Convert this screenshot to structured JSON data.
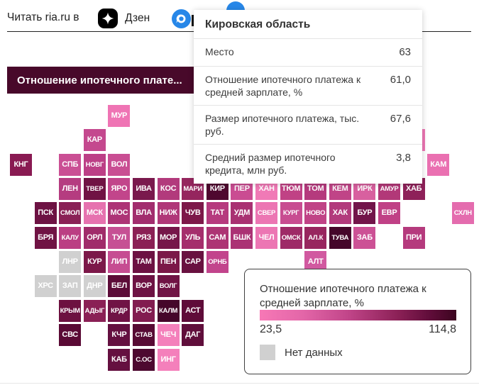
{
  "header": {
    "read_text": "Читать ria.ru в",
    "zen_label": "Дзен"
  },
  "title_bar": {
    "text": "Отношение ипотечного плате..."
  },
  "tooltip": {
    "title": "Кировская область",
    "rows": [
      {
        "label": "Место",
        "value": "63"
      },
      {
        "label": "Отношение ипотечного платежа к средней зарплате, %",
        "value": "61,0"
      },
      {
        "label": "Размер ипотечного платежа, тыс. руб.",
        "value": "67,6"
      },
      {
        "label": "Средний размер ипотечного кредита, млн руб.",
        "value": "3,8"
      }
    ]
  },
  "legend": {
    "title": "Отношение ипотечного платежа к средней зарплате, %",
    "min": "23,5",
    "max": "114,8",
    "no_data_label": "Нет данных",
    "no_data_color": "#d0d0d0",
    "gradient": [
      "#f778b6 0%",
      "#e366a8 22%",
      "#c14589 45%",
      "#8c2157 70%",
      "#5f0c39 87%",
      "#3c051f 100%"
    ]
  },
  "chart_data": {
    "type": "heatmap",
    "title": "Отношение ипотечного плате...",
    "colorbar": {
      "label": "Отношение ипотечного платежа к средней зарплате, %",
      "min": 23.5,
      "max": 114.8,
      "no_data": "Нет данных"
    },
    "selected_region": {
      "name": "Кировская область",
      "rank": 63,
      "payment_to_salary_pct": 61.0,
      "payment_thousand_rub": 67.6,
      "avg_credit_mln_rub": 3.8
    },
    "regions": [
      {
        "label": "МУР",
        "row": 0,
        "col": 4,
        "color": "#ef74b4"
      },
      {
        "label": "КАР",
        "row": 1,
        "col": 3,
        "color": "#c4488e"
      },
      {
        "label": "",
        "row": 1,
        "col": 16,
        "color": "#ee77b5"
      },
      {
        "label": "КНГ",
        "row": 2,
        "col": 0,
        "color": "#891a52"
      },
      {
        "label": "СПБ",
        "row": 2,
        "col": 2,
        "color": "#ca4f94"
      },
      {
        "label": "НОВГ",
        "row": 2,
        "col": 3,
        "color": "#bc3f86"
      },
      {
        "label": "ВОЛ",
        "row": 2,
        "col": 4,
        "color": "#c94e93"
      },
      {
        "label": "КАМ",
        "row": 2,
        "col": 17,
        "color": "#ea70b1"
      },
      {
        "label": "ЛЕН",
        "row": 3,
        "col": 2,
        "color": "#b53c80"
      },
      {
        "label": "ТВЕР",
        "row": 3,
        "col": 3,
        "color": "#701344"
      },
      {
        "label": "ЯРО",
        "row": 3,
        "col": 4,
        "color": "#c2458b"
      },
      {
        "label": "ИВА",
        "row": 3,
        "col": 5,
        "color": "#7a194d"
      },
      {
        "label": "КОС",
        "row": 3,
        "col": 6,
        "color": "#b23a7c"
      },
      {
        "label": "МАРИ",
        "row": 3,
        "col": 7,
        "color": "#95255e"
      },
      {
        "label": "КИР",
        "row": 3,
        "col": 8,
        "color": "#4f082f",
        "highlight": true
      },
      {
        "label": "ПЕР",
        "row": 3,
        "col": 9,
        "color": "#ca4c92"
      },
      {
        "label": "ХАН",
        "row": 3,
        "col": 10,
        "color": "#f07ab6"
      },
      {
        "label": "ТЮМ",
        "row": 3,
        "col": 11,
        "color": "#c04285"
      },
      {
        "label": "ТОМ",
        "row": 3,
        "col": 12,
        "color": "#b53a7d"
      },
      {
        "label": "КЕМ",
        "row": 3,
        "col": 13,
        "color": "#c04487"
      },
      {
        "label": "ИРК",
        "row": 3,
        "col": 14,
        "color": "#d8609f"
      },
      {
        "label": "АМУР",
        "row": 3,
        "col": 15,
        "color": "#b23878"
      },
      {
        "label": "ХАБ",
        "row": 3,
        "col": 16,
        "color": "#8e2159"
      },
      {
        "label": "ПСК",
        "row": 4,
        "col": 1,
        "color": "#6d1243"
      },
      {
        "label": "СМОЛ",
        "row": 4,
        "col": 2,
        "color": "#8a2156"
      },
      {
        "label": "МСК",
        "row": 4,
        "col": 3,
        "color": "#e672af"
      },
      {
        "label": "МОС",
        "row": 4,
        "col": 4,
        "color": "#ad3476"
      },
      {
        "label": "ВЛА",
        "row": 4,
        "col": 5,
        "color": "#a22d6e"
      },
      {
        "label": "НИЖ",
        "row": 4,
        "col": 6,
        "color": "#b03778"
      },
      {
        "label": "ЧУВ",
        "row": 4,
        "col": 7,
        "color": "#7d1849"
      },
      {
        "label": "ТАТ",
        "row": 4,
        "col": 8,
        "color": "#b63a7e"
      },
      {
        "label": "УДМ",
        "row": 4,
        "col": 9,
        "color": "#a93172"
      },
      {
        "label": "СВЕР",
        "row": 4,
        "col": 10,
        "color": "#ec76b3"
      },
      {
        "label": "КУРГ",
        "row": 4,
        "col": 11,
        "color": "#c84d91"
      },
      {
        "label": "НОВО",
        "row": 4,
        "col": 12,
        "color": "#c04386"
      },
      {
        "label": "ХАК",
        "row": 4,
        "col": 13,
        "color": "#b23a7c"
      },
      {
        "label": "БУР",
        "row": 4,
        "col": 14,
        "color": "#72154a"
      },
      {
        "label": "ЕВР",
        "row": 4,
        "col": 15,
        "color": "#c04186"
      },
      {
        "label": "СХЛН",
        "row": 4,
        "col": 18,
        "color": "#e46cae"
      },
      {
        "label": "БРЯ",
        "row": 5,
        "col": 1,
        "color": "#701344"
      },
      {
        "label": "КАЛУ",
        "row": 5,
        "col": 2,
        "color": "#bb3e83"
      },
      {
        "label": "ОРЛ",
        "row": 5,
        "col": 3,
        "color": "#a02b6a"
      },
      {
        "label": "ТУЛ",
        "row": 5,
        "col": 4,
        "color": "#c65094"
      },
      {
        "label": "РЯЗ",
        "row": 5,
        "col": 5,
        "color": "#8b2055"
      },
      {
        "label": "МОР",
        "row": 5,
        "col": 6,
        "color": "#76164a"
      },
      {
        "label": "УЛЬ",
        "row": 5,
        "col": 7,
        "color": "#a52e6c"
      },
      {
        "label": "САМ",
        "row": 5,
        "col": 8,
        "color": "#ad3474"
      },
      {
        "label": "БШК",
        "row": 5,
        "col": 9,
        "color": "#ab3274"
      },
      {
        "label": "ЧЕЛ",
        "row": 5,
        "col": 10,
        "color": "#ec76b3"
      },
      {
        "label": "ОМСК",
        "row": 5,
        "col": 11,
        "color": "#9e2a67"
      },
      {
        "label": "АЛ.К",
        "row": 5,
        "col": 12,
        "color": "#98265f"
      },
      {
        "label": "ТУВА",
        "row": 5,
        "col": 13,
        "color": "#45062a"
      },
      {
        "label": "ЗАБ",
        "row": 5,
        "col": 14,
        "color": "#cc5195"
      },
      {
        "label": "ПРИ",
        "row": 5,
        "col": 16,
        "color": "#b53a7d"
      },
      {
        "label": "ЛНР",
        "row": 6,
        "col": 2,
        "color": "#d0d0d0",
        "no_data": true
      },
      {
        "label": "КУР",
        "row": 6,
        "col": 3,
        "color": "#7c1849"
      },
      {
        "label": "ЛИП",
        "row": 6,
        "col": 4,
        "color": "#c64d92"
      },
      {
        "label": "ТАМ",
        "row": 6,
        "col": 5,
        "color": "#6d1243"
      },
      {
        "label": "ПЕН",
        "row": 6,
        "col": 6,
        "color": "#7b1848"
      },
      {
        "label": "САР",
        "row": 6,
        "col": 7,
        "color": "#691140"
      },
      {
        "label": "ОРНБ",
        "row": 6,
        "col": 8,
        "color": "#c2448c"
      },
      {
        "label": "АЛТ",
        "row": 6,
        "col": 12,
        "color": "#d159a0"
      },
      {
        "label": "ХРС",
        "row": 7,
        "col": 1,
        "color": "#d0d0d0",
        "no_data": true
      },
      {
        "label": "ЗАП",
        "row": 7,
        "col": 2,
        "color": "#d0d0d0",
        "no_data": true
      },
      {
        "label": "ДНР",
        "row": 7,
        "col": 3,
        "color": "#d0d0d0",
        "no_data": true
      },
      {
        "label": "БЕЛ",
        "row": 7,
        "col": 4,
        "color": "#5c0c38"
      },
      {
        "label": "ВОР",
        "row": 7,
        "col": 5,
        "color": "#6d1243"
      },
      {
        "label": "ВОЛГ",
        "row": 7,
        "col": 6,
        "color": "#701445"
      },
      {
        "label": "КРЫМ",
        "row": 8,
        "col": 2,
        "color": "#6d1140"
      },
      {
        "label": "АДЫГ",
        "row": 8,
        "col": 3,
        "color": "#8a2055"
      },
      {
        "label": "КРДР",
        "row": 8,
        "col": 4,
        "color": "#701345"
      },
      {
        "label": "РОС",
        "row": 8,
        "col": 5,
        "color": "#821c50"
      },
      {
        "label": "КАЛМ",
        "row": 8,
        "col": 6,
        "color": "#45062a"
      },
      {
        "label": "АСТ",
        "row": 8,
        "col": 7,
        "color": "#5f0c39"
      },
      {
        "label": "СВС",
        "row": 9,
        "col": 2,
        "color": "#5a0a35"
      },
      {
        "label": "КЧР",
        "row": 9,
        "col": 4,
        "color": "#641040"
      },
      {
        "label": "СТАВ",
        "row": 9,
        "col": 5,
        "color": "#570b34"
      },
      {
        "label": "ЧЕЧ",
        "row": 9,
        "col": 6,
        "color": "#f480bb"
      },
      {
        "label": "ДАГ",
        "row": 9,
        "col": 7,
        "color": "#600e3b"
      },
      {
        "label": "КАБ",
        "row": 10,
        "col": 4,
        "color": "#651040"
      },
      {
        "label": "С.ОС",
        "row": 10,
        "col": 5,
        "color": "#4d0930"
      },
      {
        "label": "ИНГ",
        "row": 10,
        "col": 6,
        "color": "#f480bb"
      }
    ]
  }
}
